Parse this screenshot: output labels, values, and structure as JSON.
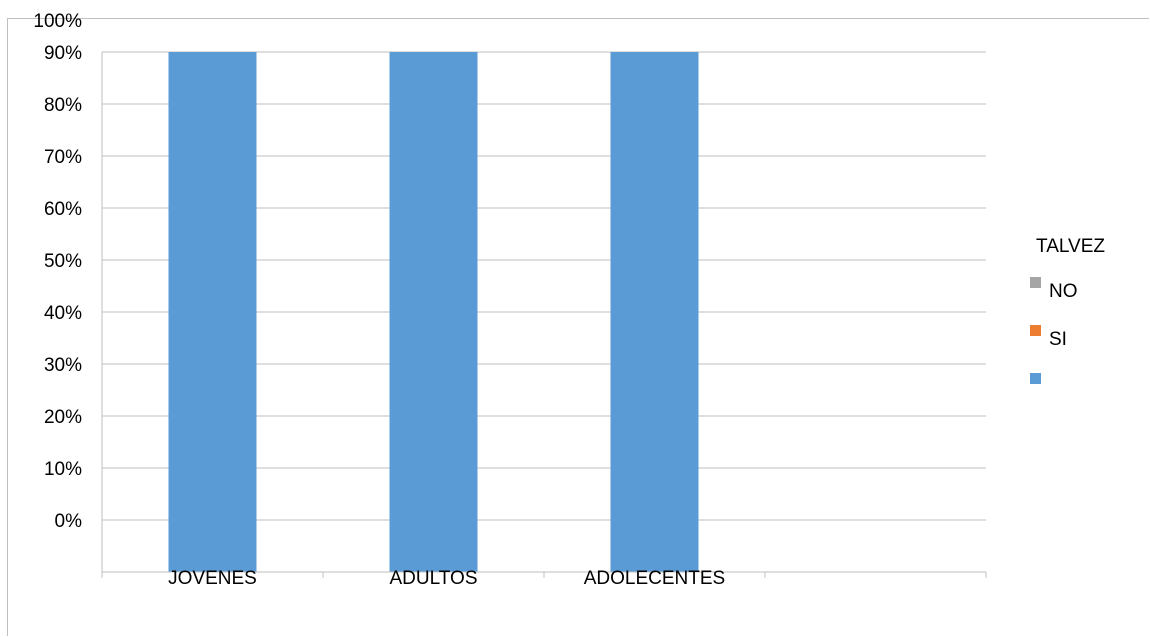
{
  "chart_data": {
    "type": "bar",
    "stacked": true,
    "categories": [
      "JOVENES",
      "ADULTOS",
      "ADOLECENTES",
      ""
    ],
    "series": [
      {
        "name": "",
        "color": "#5b9bd5",
        "values": [
          100,
          100,
          100,
          0
        ]
      },
      {
        "name": "SI",
        "color": "#ed7d31",
        "values": [
          0,
          0,
          0,
          0
        ]
      },
      {
        "name": "NO",
        "color": "#a5a5a5",
        "values": [
          0,
          0,
          0,
          0
        ]
      },
      {
        "name": "TALVEZ",
        "color": "#ffc000",
        "values": [
          0,
          0,
          0,
          0
        ]
      }
    ],
    "ylim": [
      0,
      100
    ],
    "yticks": [
      "0%",
      "10%",
      "20%",
      "30%",
      "40%",
      "50%",
      "60%",
      "70%",
      "80%",
      "90%",
      "100%"
    ],
    "grid": true,
    "legend_position": "right",
    "title": "",
    "xlabel": "",
    "ylabel": ""
  },
  "legend": {
    "header": "TALVEZ",
    "items": [
      {
        "label": "NO",
        "color": "#a5a5a5"
      },
      {
        "label": "SI",
        "color": "#ed7d31"
      },
      {
        "label": "",
        "color": "#5b9bd5"
      }
    ]
  }
}
